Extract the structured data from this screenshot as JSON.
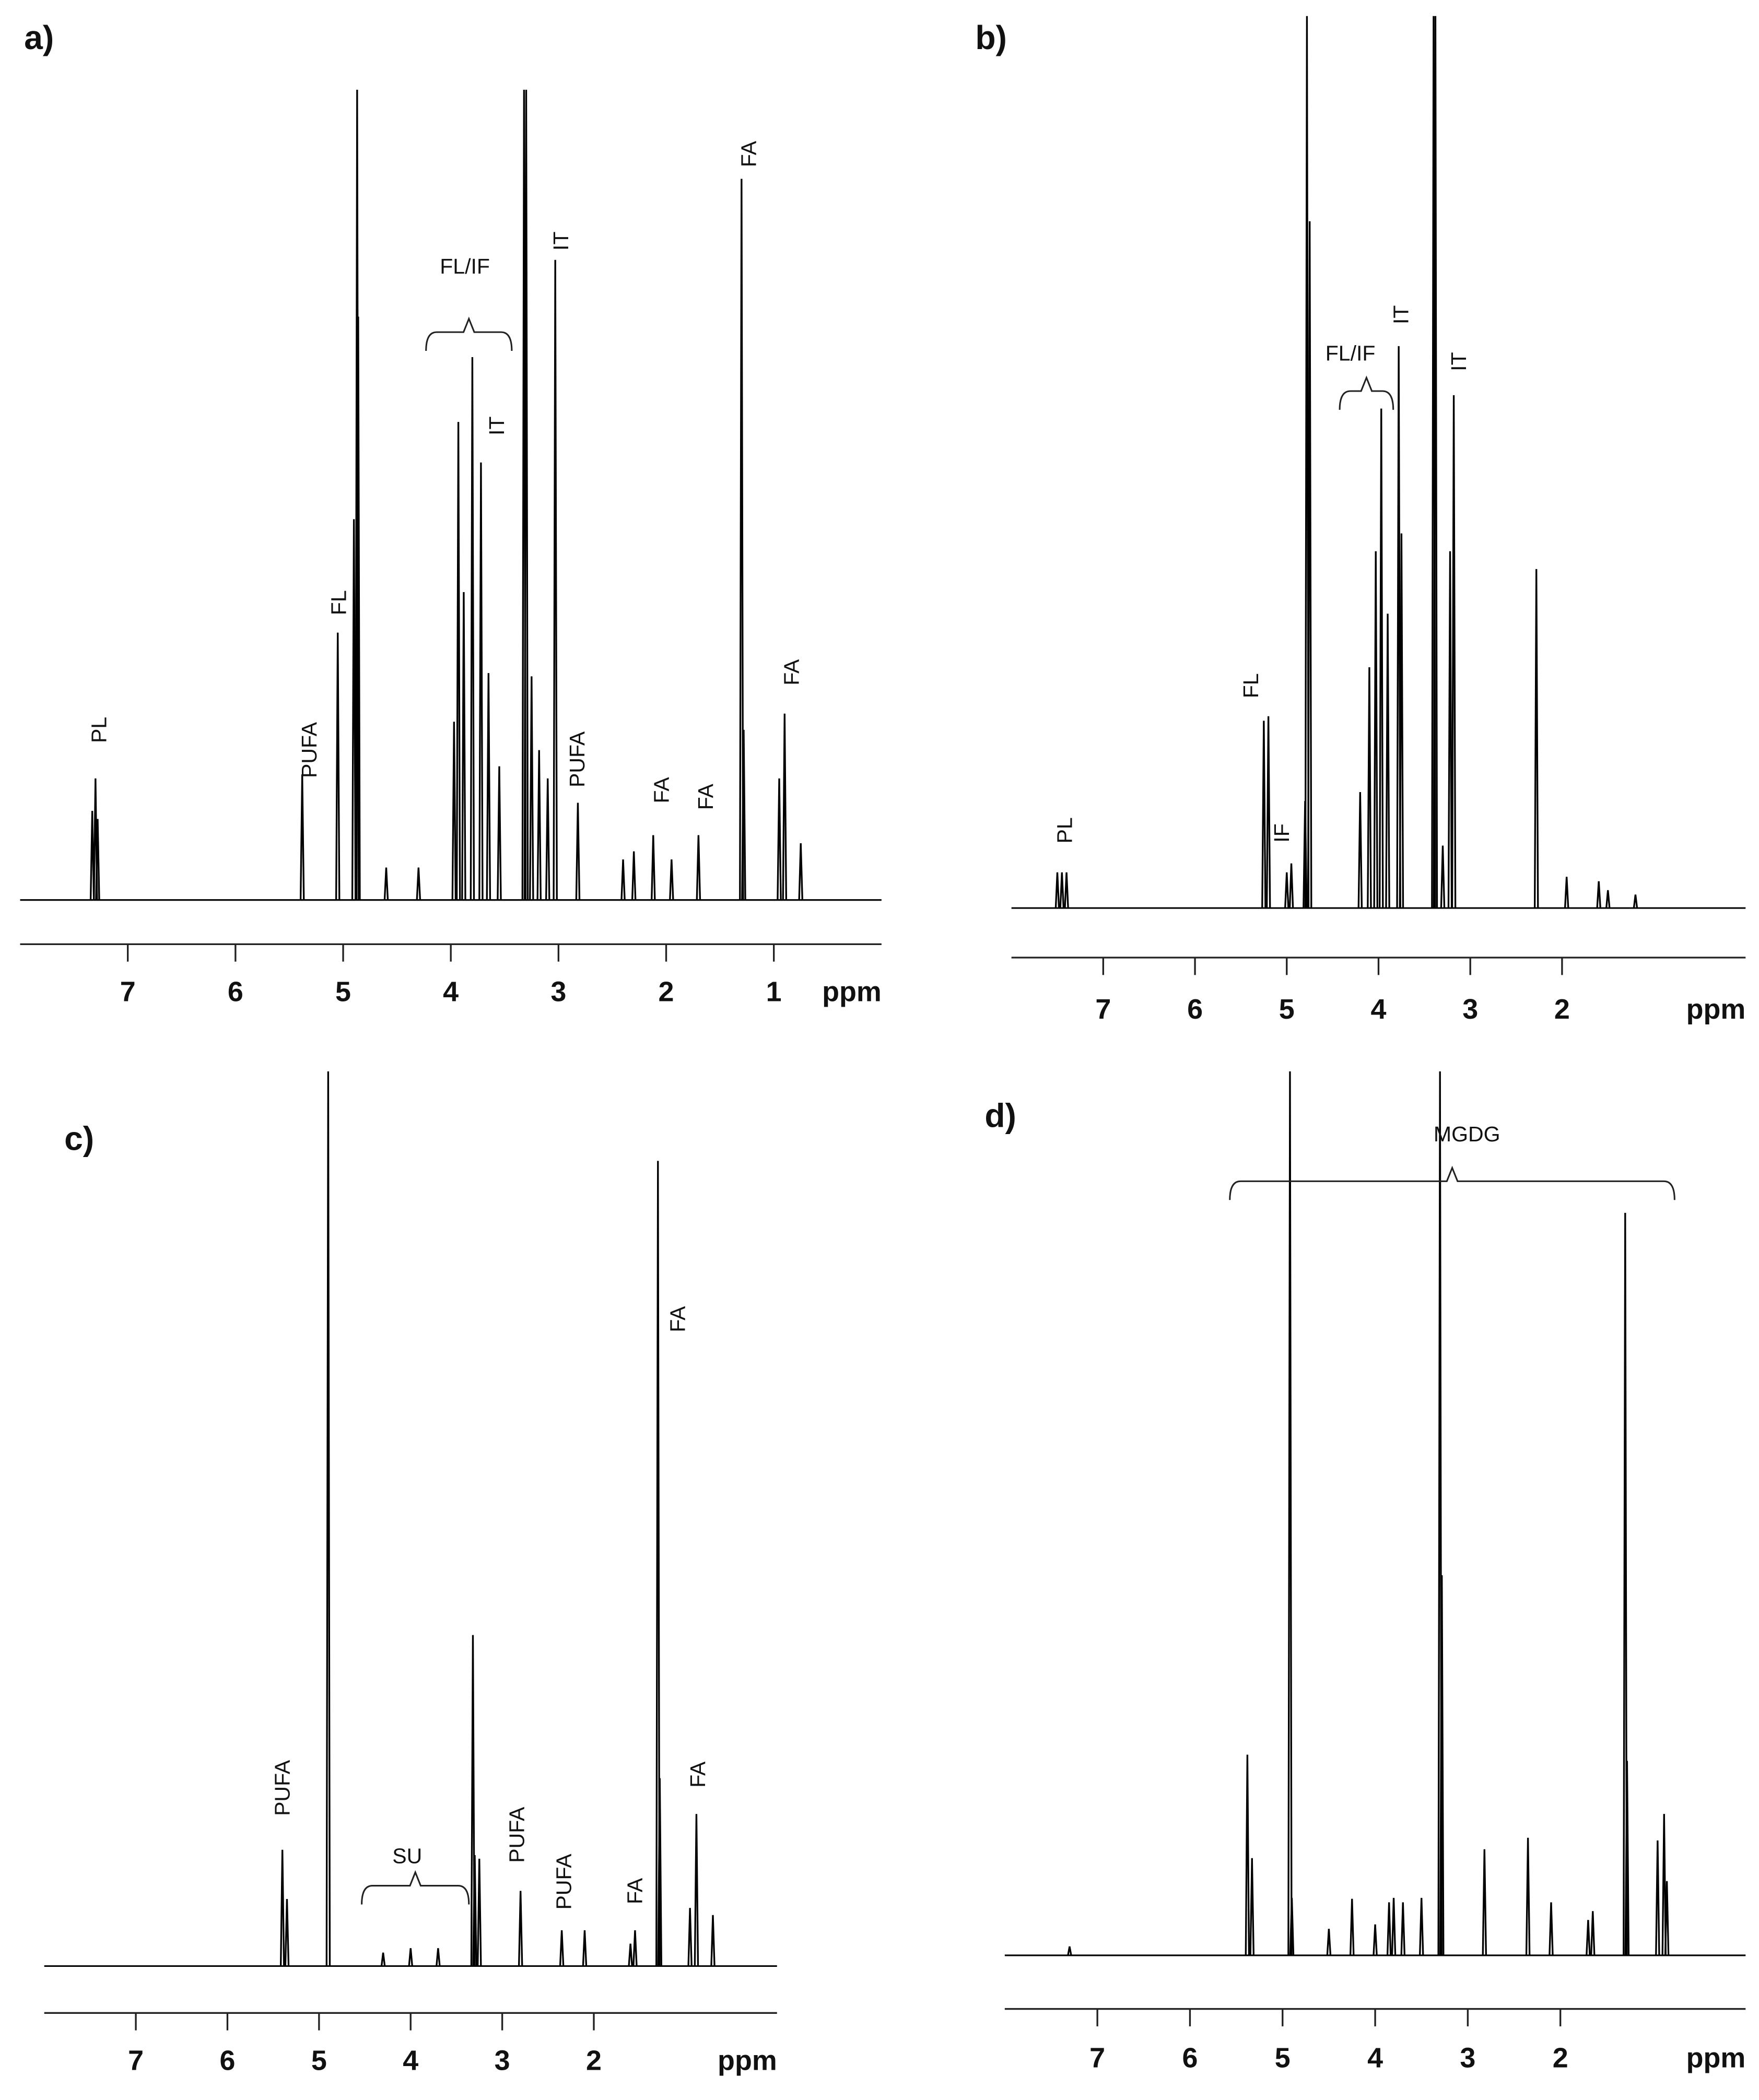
{
  "chart_data": [
    {
      "type": "spectrum",
      "label": "a)",
      "xlabel": "ppm",
      "color": "#000000",
      "xlim": [
        8,
        0
      ],
      "xticks": [
        7,
        6,
        5,
        4,
        3,
        2,
        1
      ],
      "ylim": [
        0,
        100
      ],
      "x": [
        7.33,
        7.3,
        7.28,
        5.38,
        5.05,
        4.9,
        4.87,
        4.86,
        4.6,
        4.3,
        3.97,
        3.93,
        3.88,
        3.8,
        3.72,
        3.65,
        3.55,
        3.32,
        3.3,
        3.25,
        3.18,
        3.1,
        3.03,
        2.82,
        2.4,
        2.3,
        2.12,
        1.95,
        1.7,
        1.3,
        1.28,
        0.95,
        0.9,
        0.75
      ],
      "values": [
        11,
        15,
        10,
        15.5,
        33,
        47,
        100,
        72,
        4,
        4,
        22,
        59,
        38,
        67,
        54,
        28,
        16.5,
        100,
        100,
        27.6,
        18.5,
        15,
        79,
        12,
        5,
        6,
        8,
        5,
        8,
        89,
        21,
        15,
        23,
        7
      ],
      "annotations": [
        "PL",
        "PUFA",
        "FL",
        "FL/IF",
        "IT",
        "IT",
        "PUFA",
        "FA",
        "FA",
        "FA",
        "FA"
      ]
    },
    {
      "type": "spectrum",
      "label": "b)",
      "xlabel": "ppm",
      "color": "#000000",
      "xlim": [
        8,
        0
      ],
      "xticks": [
        7,
        6,
        5,
        4,
        3,
        2
      ],
      "ylim": [
        0,
        100
      ],
      "x": [
        7.5,
        7.45,
        7.4,
        5.25,
        5.2,
        5.0,
        4.95,
        4.8,
        4.78,
        4.75,
        4.2,
        4.1,
        4.03,
        3.97,
        3.9,
        3.78,
        3.75,
        3.4,
        3.38,
        3.3,
        3.22,
        3.18,
        2.28,
        1.95,
        1.6,
        1.5,
        1.2
      ],
      "values": [
        4,
        4,
        4,
        21,
        21.5,
        4,
        5,
        12,
        100,
        77,
        13,
        27,
        40,
        56,
        33,
        63,
        42,
        100,
        100,
        7,
        40,
        57.5,
        38,
        3.5,
        3,
        2,
        1.5
      ],
      "annotations": [
        "PL",
        "FL",
        "IF",
        "FL/IF",
        "IT",
        "IT"
      ]
    },
    {
      "type": "spectrum",
      "label": "c)",
      "xlabel": "ppm",
      "color": "#000000",
      "xlim": [
        8,
        0
      ],
      "xticks": [
        7,
        6,
        5,
        4,
        3,
        2
      ],
      "ylim": [
        0,
        100
      ],
      "x": [
        5.4,
        5.35,
        4.9,
        4.3,
        4.0,
        3.7,
        3.32,
        3.3,
        3.25,
        2.8,
        2.35,
        2.1,
        1.6,
        1.55,
        1.3,
        1.28,
        0.95,
        0.88,
        0.7
      ],
      "values": [
        13,
        7.5,
        100,
        1.5,
        2,
        2,
        37,
        12.4,
        12,
        8.4,
        4,
        4,
        2.5,
        4,
        90,
        21,
        6.5,
        17,
        5.7
      ],
      "annotations": [
        "PUFA",
        "SU",
        "PUFA",
        "PUFA",
        "FA",
        "FA",
        "FA"
      ]
    },
    {
      "type": "spectrum",
      "label": "d)",
      "xlabel": "ppm",
      "color": "#000000",
      "xlim": [
        8,
        0
      ],
      "xticks": [
        7,
        6,
        5,
        4,
        3,
        2
      ],
      "ylim": [
        0,
        100
      ],
      "x": [
        7.3,
        5.38,
        5.33,
        4.92,
        4.9,
        4.5,
        4.25,
        4.0,
        3.85,
        3.8,
        3.7,
        3.5,
        3.3,
        3.28,
        2.82,
        2.35,
        2.1,
        1.7,
        1.65,
        1.3,
        1.28,
        0.95,
        0.88,
        0.85
      ],
      "values": [
        1,
        22.7,
        11,
        100,
        6.5,
        3,
        6.4,
        3.5,
        6,
        6.5,
        6,
        6.5,
        100,
        43,
        12,
        13.3,
        6,
        4,
        5,
        84,
        22,
        13,
        16,
        8.4
      ],
      "annotations": [
        "MGDG"
      ]
    }
  ]
}
